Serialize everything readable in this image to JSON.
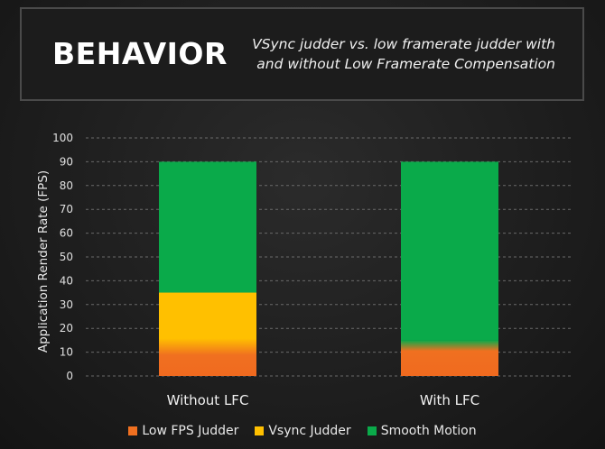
{
  "header": {
    "title": "BEHAVIOR",
    "subtitle_line1": "VSync judder vs. low framerate judder with",
    "subtitle_line2": "and without Low Framerate Compensation"
  },
  "colors": {
    "low_fps": "#f07020",
    "vsync": "#ffc000",
    "smooth": "#0aaa4a"
  },
  "chart_data": {
    "type": "bar",
    "stacked": true,
    "categories": [
      "Without LFC",
      "With LFC"
    ],
    "ylabel": "Application Render Rate (FPS)",
    "xlabel": "",
    "ylim": [
      0,
      100
    ],
    "yticks": [
      0,
      10,
      20,
      30,
      40,
      50,
      60,
      70,
      80,
      90,
      100
    ],
    "grid": true,
    "legend_position": "bottom",
    "series": [
      {
        "name": "Low FPS Judder",
        "values": [
          15,
          15
        ],
        "color": "#f07020"
      },
      {
        "name": "Vsync Judder",
        "values": [
          20,
          0
        ],
        "color": "#ffc000"
      },
      {
        "name": "Smooth Motion",
        "values": [
          55,
          75
        ],
        "color": "#0aaa4a"
      }
    ]
  }
}
